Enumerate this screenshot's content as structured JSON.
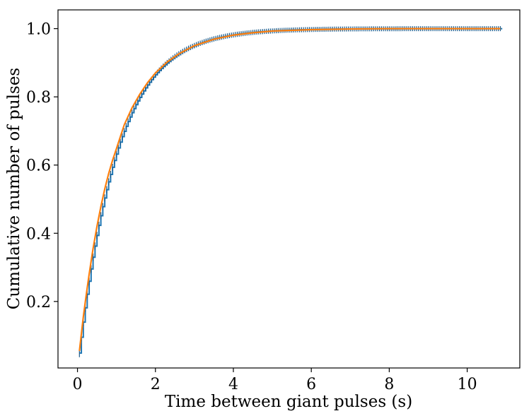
{
  "chart_data": {
    "type": "line",
    "xlabel": "Time between giant pulses (s)",
    "ylabel": "Cumulative number of pulses",
    "xlim": [
      -0.5,
      11.35
    ],
    "ylim": [
      0.005,
      1.055
    ],
    "xticks": [
      0,
      2,
      4,
      6,
      8,
      10
    ],
    "yticks": [
      0.2,
      0.4,
      0.6,
      0.8,
      1.0
    ],
    "xtick_labels": [
      "0",
      "2",
      "4",
      "6",
      "8",
      "10"
    ],
    "ytick_labels": [
      "0.2",
      "0.4",
      "0.6",
      "0.8",
      "1.0"
    ],
    "grid": false,
    "legend": "none",
    "x_range": [
      0.05,
      10.85
    ],
    "series": [
      {
        "style": "step-with-errorbars",
        "color": "#1f77b4",
        "model": "empirical cumulative distribution",
        "tau": 1.0,
        "x": [
          0.05,
          0.1,
          0.15,
          0.2,
          0.25,
          0.3,
          0.35,
          0.4,
          0.5,
          0.6,
          0.7,
          0.8,
          0.9,
          1.0,
          1.2,
          1.4,
          1.6,
          1.8,
          2.0,
          2.3,
          2.6,
          3.0,
          3.5,
          4.0,
          4.5,
          5.0,
          6.0,
          7.0,
          8.0,
          9.0,
          10.0,
          10.85
        ],
        "y": [
          0.055,
          0.105,
          0.155,
          0.198,
          0.24,
          0.28,
          0.318,
          0.355,
          0.42,
          0.478,
          0.53,
          0.575,
          0.614,
          0.648,
          0.718,
          0.765,
          0.805,
          0.838,
          0.865,
          0.898,
          0.922,
          0.945,
          0.965,
          0.978,
          0.986,
          0.991,
          0.996,
          0.998,
          0.999,
          1.0,
          1.0,
          1.0
        ]
      },
      {
        "style": "line",
        "color": "#ff7f0e",
        "model": "exponential fit",
        "x": [
          0.05,
          0.1,
          0.15,
          0.2,
          0.25,
          0.3,
          0.35,
          0.4,
          0.5,
          0.6,
          0.7,
          0.8,
          0.9,
          1.0,
          1.2,
          1.4,
          1.6,
          1.8,
          2.0,
          2.3,
          2.6,
          3.0,
          3.5,
          4.0,
          4.5,
          5.0,
          6.0,
          7.0,
          8.0,
          9.0,
          10.0,
          10.85
        ],
        "y": [
          0.055,
          0.105,
          0.155,
          0.198,
          0.24,
          0.28,
          0.318,
          0.355,
          0.42,
          0.478,
          0.53,
          0.575,
          0.614,
          0.648,
          0.718,
          0.768,
          0.808,
          0.842,
          0.87,
          0.902,
          0.926,
          0.95,
          0.969,
          0.981,
          0.988,
          0.993,
          0.997,
          0.999,
          1.0,
          1.0,
          1.0,
          1.0
        ]
      }
    ]
  }
}
